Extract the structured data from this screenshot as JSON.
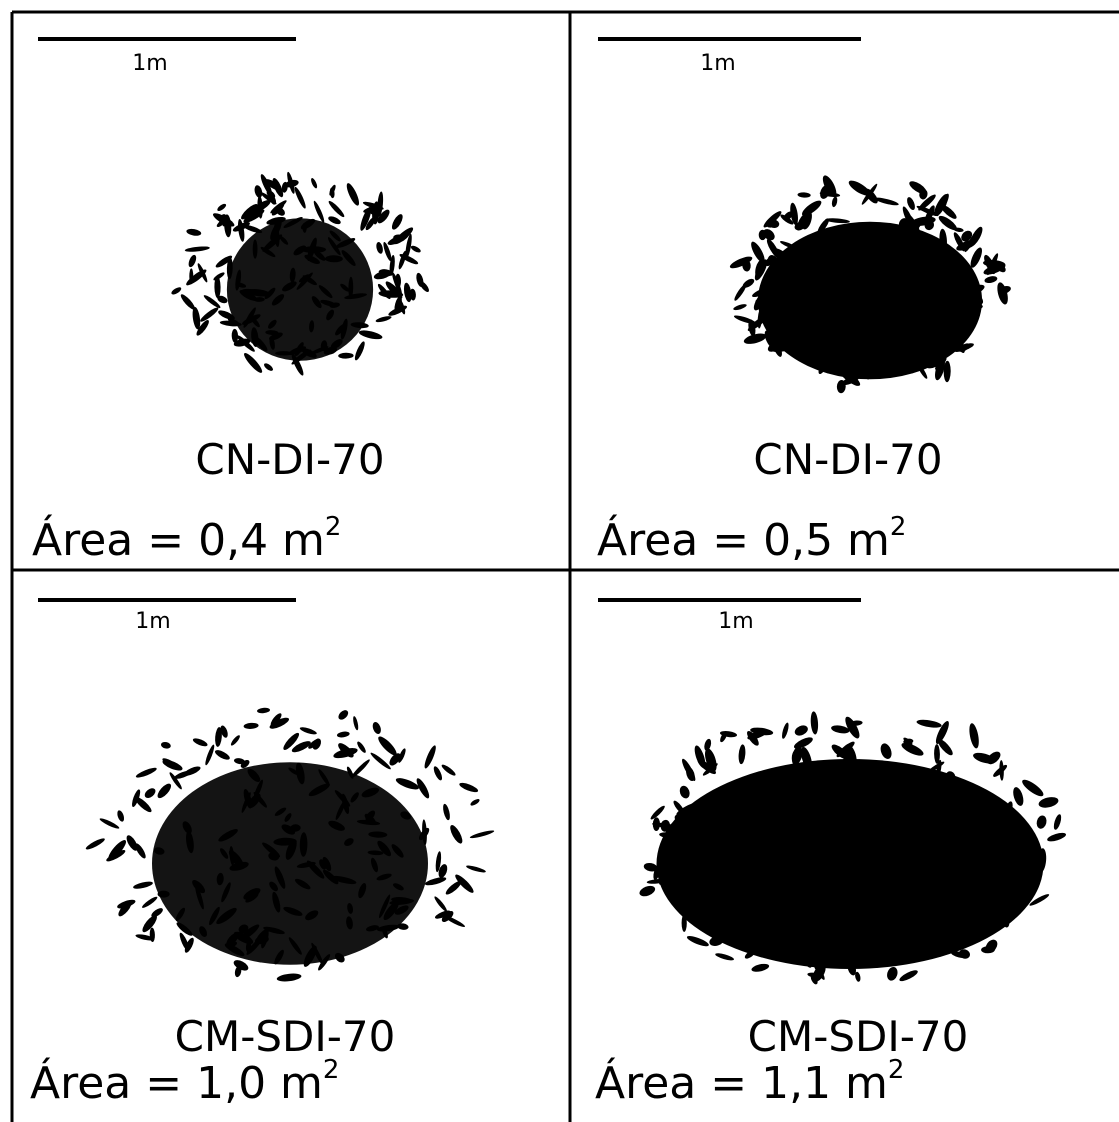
{
  "panels": [
    {
      "scale_label": "1m",
      "name": "CN-DI-70",
      "area_label": "Área = 0,4 m",
      "area_exponent": "2"
    },
    {
      "scale_label": "1m",
      "name": "CN-DI-70",
      "area_label": "Área = 0,5 m",
      "area_exponent": "2"
    },
    {
      "scale_label": "1m",
      "name": "CM-SDI-70",
      "area_label": "Área = 1,0 m",
      "area_exponent": "2"
    },
    {
      "scale_label": "1m",
      "name": "CM-SDI-70",
      "area_label": "Área = 1,1 m",
      "area_exponent": "2"
    }
  ]
}
